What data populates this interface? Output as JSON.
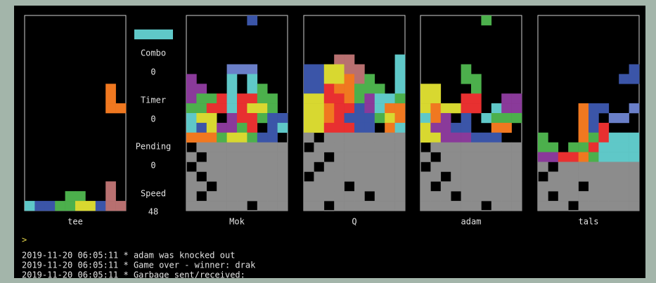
{
  "sidebar": {
    "combo_label": "Combo",
    "combo": 0,
    "timer_label": "Timer",
    "timer": 0,
    "pending_label": "Pending",
    "pending": 0,
    "speed_label": "Speed",
    "speed": 48
  },
  "players": [
    "tee",
    "Mok",
    "Q",
    "adam",
    "tals"
  ],
  "prompt": ">",
  "log": [
    "2019-11-20 06:05:11 * adam was knocked out",
    "2019-11-20 06:05:11 * Game over - winner: drak",
    "2019-11-20 06:05:11 * Garbage sent/received:"
  ]
}
